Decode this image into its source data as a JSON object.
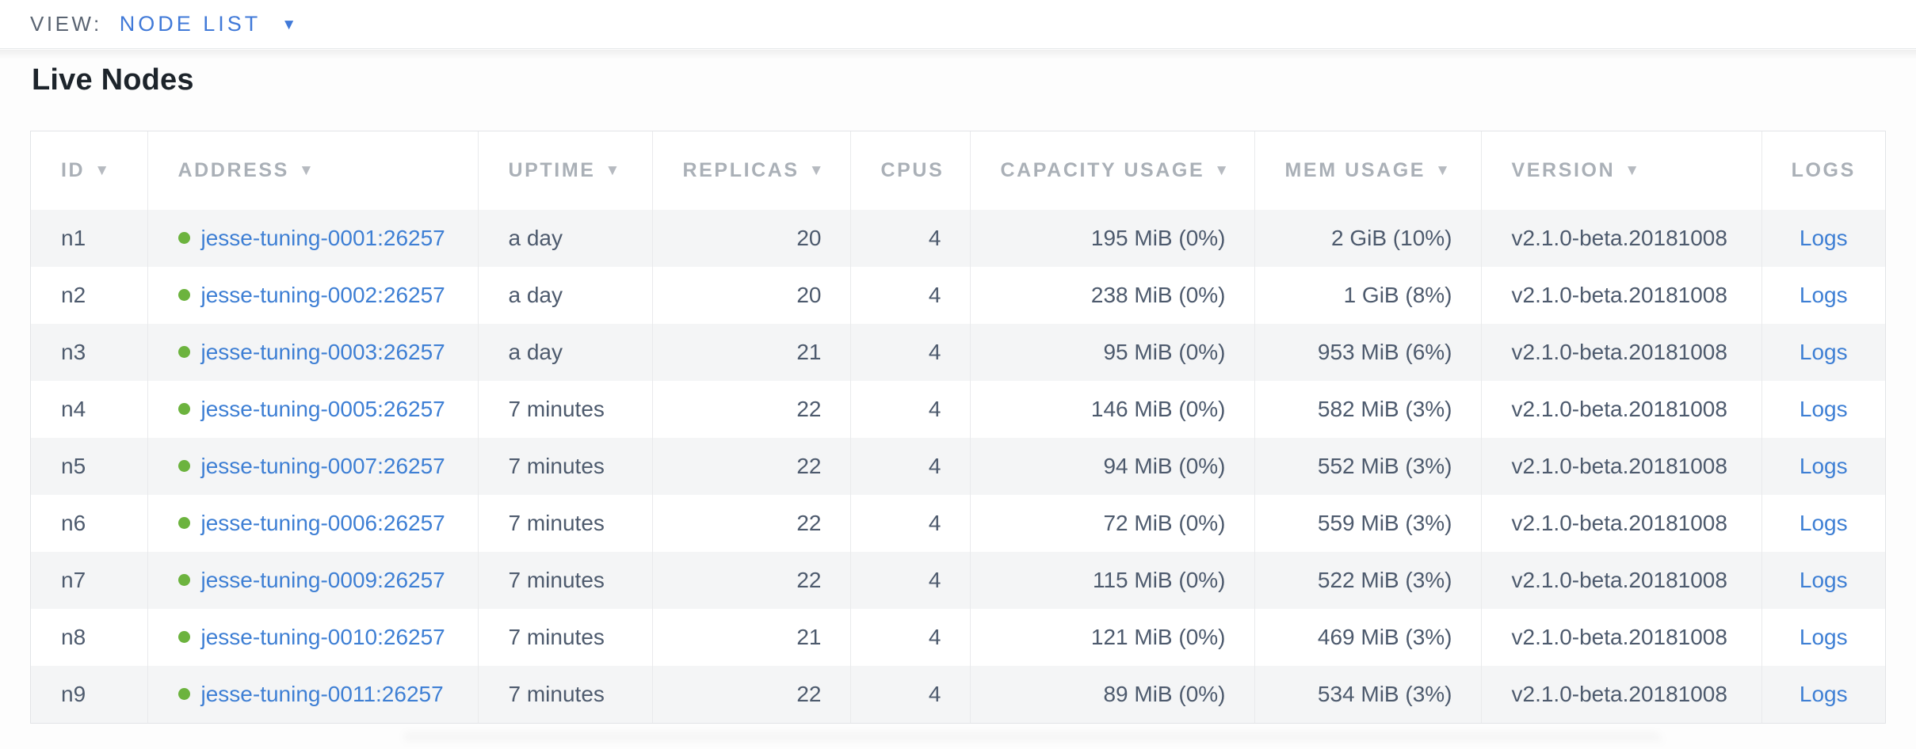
{
  "view_bar": {
    "label": "VIEW:",
    "selected_view": "NODE LIST",
    "dropdown_icon": "▼"
  },
  "page": {
    "title": "Live Nodes"
  },
  "colors": {
    "accent_blue": "#4079d8",
    "link_blue": "#3e7fd4",
    "node_status_green": "#6cb33e",
    "header_text_gray": "#aab0b7",
    "cell_text": "#4d5a6d",
    "row_stripe": "#f4f5f6"
  },
  "table": {
    "columns": [
      {
        "label": "ID",
        "sort_indicator": "▼"
      },
      {
        "label": "ADDRESS",
        "sort_indicator": "▼"
      },
      {
        "label": "UPTIME",
        "sort_indicator": "▼"
      },
      {
        "label": "REPLICAS",
        "sort_indicator": "▼"
      },
      {
        "label": "CPUS",
        "sort_indicator": ""
      },
      {
        "label": "CAPACITY USAGE",
        "sort_indicator": "▼"
      },
      {
        "label": "MEM USAGE",
        "sort_indicator": "▼"
      },
      {
        "label": "VERSION",
        "sort_indicator": "▼"
      },
      {
        "label": "LOGS",
        "sort_indicator": ""
      }
    ],
    "rows": [
      {
        "id": "n1",
        "status": "live",
        "address": "jesse-tuning-0001:26257",
        "uptime": "a day",
        "replicas": "20",
        "cpus": "4",
        "capacity_usage": "195 MiB (0%)",
        "mem_usage": "2 GiB (10%)",
        "version": "v2.1.0-beta.20181008",
        "logs_label": "Logs"
      },
      {
        "id": "n2",
        "status": "live",
        "address": "jesse-tuning-0002:26257",
        "uptime": "a day",
        "replicas": "20",
        "cpus": "4",
        "capacity_usage": "238 MiB (0%)",
        "mem_usage": "1 GiB (8%)",
        "version": "v2.1.0-beta.20181008",
        "logs_label": "Logs"
      },
      {
        "id": "n3",
        "status": "live",
        "address": "jesse-tuning-0003:26257",
        "uptime": "a day",
        "replicas": "21",
        "cpus": "4",
        "capacity_usage": "95 MiB (0%)",
        "mem_usage": "953 MiB (6%)",
        "version": "v2.1.0-beta.20181008",
        "logs_label": "Logs"
      },
      {
        "id": "n4",
        "status": "live",
        "address": "jesse-tuning-0005:26257",
        "uptime": "7 minutes",
        "replicas": "22",
        "cpus": "4",
        "capacity_usage": "146 MiB (0%)",
        "mem_usage": "582 MiB (3%)",
        "version": "v2.1.0-beta.20181008",
        "logs_label": "Logs"
      },
      {
        "id": "n5",
        "status": "live",
        "address": "jesse-tuning-0007:26257",
        "uptime": "7 minutes",
        "replicas": "22",
        "cpus": "4",
        "capacity_usage": "94 MiB (0%)",
        "mem_usage": "552 MiB (3%)",
        "version": "v2.1.0-beta.20181008",
        "logs_label": "Logs"
      },
      {
        "id": "n6",
        "status": "live",
        "address": "jesse-tuning-0006:26257",
        "uptime": "7 minutes",
        "replicas": "22",
        "cpus": "4",
        "capacity_usage": "72 MiB (0%)",
        "mem_usage": "559 MiB (3%)",
        "version": "v2.1.0-beta.20181008",
        "logs_label": "Logs"
      },
      {
        "id": "n7",
        "status": "live",
        "address": "jesse-tuning-0009:26257",
        "uptime": "7 minutes",
        "replicas": "22",
        "cpus": "4",
        "capacity_usage": "115 MiB (0%)",
        "mem_usage": "522 MiB (3%)",
        "version": "v2.1.0-beta.20181008",
        "logs_label": "Logs"
      },
      {
        "id": "n8",
        "status": "live",
        "address": "jesse-tuning-0010:26257",
        "uptime": "7 minutes",
        "replicas": "21",
        "cpus": "4",
        "capacity_usage": "121 MiB (0%)",
        "mem_usage": "469 MiB (3%)",
        "version": "v2.1.0-beta.20181008",
        "logs_label": "Logs"
      },
      {
        "id": "n9",
        "status": "live",
        "address": "jesse-tuning-0011:26257",
        "uptime": "7 minutes",
        "replicas": "22",
        "cpus": "4",
        "capacity_usage": "89 MiB (0%)",
        "mem_usage": "534 MiB (3%)",
        "version": "v2.1.0-beta.20181008",
        "logs_label": "Logs"
      }
    ]
  }
}
